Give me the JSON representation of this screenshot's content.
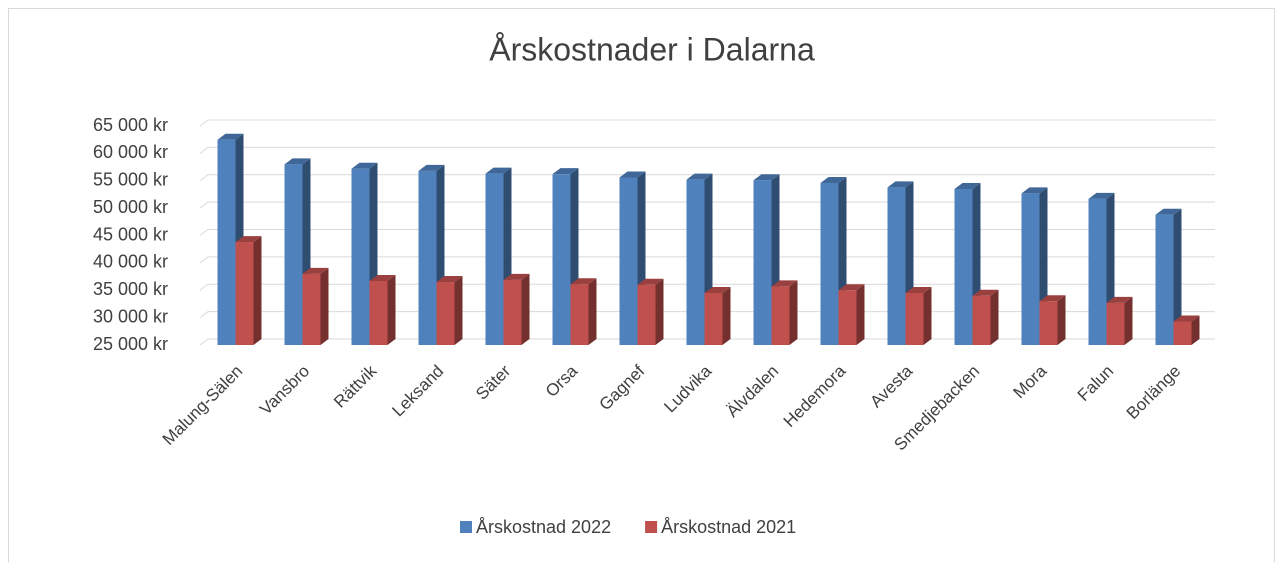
{
  "chart_data": {
    "type": "bar3d",
    "title": "Årskostnader i Dalarna",
    "categories": [
      "Malung-Sälen",
      "Vansbro",
      "Rättvik",
      "Leksand",
      "Säter",
      "Orsa",
      "Gagnef",
      "Ludvika",
      "Älvdalen",
      "Hedemora",
      "Avesta",
      "Smedjebacken",
      "Mora",
      "Falun",
      "Borlänge"
    ],
    "series": [
      {
        "name": "Årskostnad 2022",
        "color": "#4f81bd",
        "values": [
          62500,
          58000,
          57200,
          56800,
          56300,
          56200,
          55600,
          55200,
          55100,
          54600,
          53800,
          53500,
          52700,
          51700,
          48800
        ]
      },
      {
        "name": "Årskostnad 2021",
        "color": "#c0504d",
        "values": [
          43800,
          38000,
          36700,
          36500,
          36900,
          36100,
          36000,
          34500,
          35700,
          35000,
          34500,
          34000,
          33000,
          32700,
          29300
        ]
      }
    ],
    "ylim": [
      25000,
      65000
    ],
    "yticks": [
      {
        "value": 25000,
        "label": "25 000 kr"
      },
      {
        "value": 30000,
        "label": "30 000 kr"
      },
      {
        "value": 35000,
        "label": "35 000 kr"
      },
      {
        "value": 40000,
        "label": "40 000 kr"
      },
      {
        "value": 45000,
        "label": "45 000 kr"
      },
      {
        "value": 50000,
        "label": "50 000 kr"
      },
      {
        "value": 55000,
        "label": "55 000 kr"
      },
      {
        "value": 60000,
        "label": "60 000 kr"
      },
      {
        "value": 65000,
        "label": "65 000 kr"
      }
    ],
    "grid": true,
    "legend": "bottom"
  }
}
